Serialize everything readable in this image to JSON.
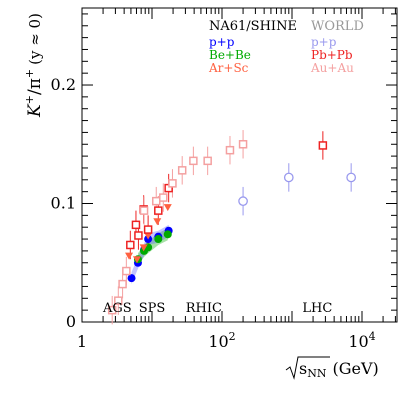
{
  "chart_data": {
    "type": "scatter",
    "title": "",
    "ylabel_html": {
      "main": "K",
      "sup": "+",
      "slash": "/π",
      "sup2": "+",
      "cond": "(y ≈ 0)"
    },
    "xlabel": {
      "root": "s",
      "sub": "NN",
      "unit": "(GeV)"
    },
    "xscale": "log",
    "xlim": [
      1,
      31623
    ],
    "ylim": [
      0,
      0.265
    ],
    "x_ticks": [
      {
        "value": 1,
        "label": "1"
      },
      {
        "value": 100,
        "label": "10",
        "exp": "2"
      },
      {
        "value": 10000,
        "label": "10",
        "exp": "4"
      }
    ],
    "y_ticks": [
      {
        "value": 0,
        "label": "0"
      },
      {
        "value": 0.1,
        "label": "0.1"
      },
      {
        "value": 0.2,
        "label": "0.2"
      }
    ],
    "grid": false,
    "legend": {
      "position": "top",
      "col1_title": "NA61/SHINE",
      "col2_title": "WORLD",
      "col1": [
        {
          "label": "p+p",
          "color": "#0000ff"
        },
        {
          "label": "Be+Be",
          "color": "#00aa00"
        },
        {
          "label": "Ar+Sc",
          "color": "#ff6040"
        }
      ],
      "col2": [
        {
          "label": "p+p",
          "color": "#9999ee"
        },
        {
          "label": "Pb+Pb",
          "color": "#ee2222"
        },
        {
          "label": "Au+Au",
          "color": "#f4a0a0"
        }
      ]
    },
    "region_labels": [
      {
        "label": "AGS",
        "x": 3.2
      },
      {
        "label": "SPS",
        "x": 10
      },
      {
        "label": "RHIC",
        "x": 55
      },
      {
        "label": "LHC",
        "x": 2300
      }
    ],
    "series": [
      {
        "name": "NA61/SHINE p+p",
        "marker": "filled-circle",
        "color": "#0000ff",
        "points": [
          [
            5.1,
            0.037
          ],
          [
            6.3,
            0.05
          ],
          [
            7.7,
            0.061
          ],
          [
            8.8,
            0.07
          ],
          [
            12.3,
            0.072
          ],
          [
            17.3,
            0.077
          ]
        ]
      },
      {
        "name": "NA61/SHINE Be+Be",
        "marker": "filled-circle",
        "color": "#00aa00",
        "points": [
          [
            6.3,
            0.053
          ],
          [
            7.7,
            0.06
          ],
          [
            8.8,
            0.063
          ],
          [
            12.3,
            0.07
          ],
          [
            16.8,
            0.074
          ]
        ]
      },
      {
        "name": "NA61/SHINE Ar+Sc",
        "marker": "filled-triangle",
        "color": "#ff6040",
        "points": [
          [
            4.7,
            0.056
          ],
          [
            6.1,
            0.053
          ],
          [
            7.6,
            0.063
          ],
          [
            8.8,
            0.073
          ],
          [
            11.9,
            0.085
          ],
          [
            16.8,
            0.097
          ]
        ]
      },
      {
        "name": "WORLD p+p",
        "marker": "open-circle",
        "color": "#9999ee",
        "points": [
          [
            200,
            0.102
          ],
          [
            900,
            0.122
          ],
          [
            7000,
            0.122
          ]
        ]
      },
      {
        "name": "WORLD Pb+Pb",
        "marker": "open-square",
        "color": "#ee2222",
        "points": [
          [
            2760,
            0.149
          ],
          [
            4.9,
            0.065
          ],
          [
            5.9,
            0.082
          ],
          [
            6.4,
            0.073
          ],
          [
            7.6,
            0.095
          ],
          [
            8.8,
            0.078
          ],
          [
            12.3,
            0.094
          ],
          [
            17.3,
            0.113
          ]
        ]
      },
      {
        "name": "WORLD Au+Au",
        "marker": "open-square",
        "color": "#f4a0a0",
        "points": [
          [
            2.7,
            0.01
          ],
          [
            3.3,
            0.018
          ],
          [
            3.8,
            0.032
          ],
          [
            4.3,
            0.043
          ],
          [
            7.7,
            0.094
          ],
          [
            11.5,
            0.102
          ],
          [
            14.5,
            0.105
          ],
          [
            19.6,
            0.117
          ],
          [
            27,
            0.128
          ],
          [
            39,
            0.136
          ],
          [
            62.4,
            0.136
          ],
          [
            130,
            0.145
          ],
          [
            200,
            0.15
          ]
        ]
      }
    ]
  }
}
